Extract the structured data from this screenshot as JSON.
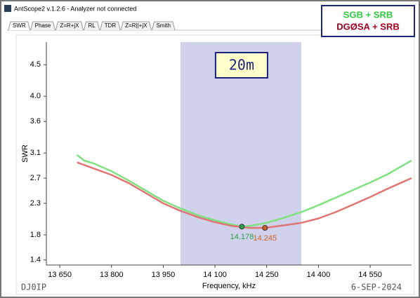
{
  "window": {
    "title": "AntScope2 v.1.2.6 - Analyzer not connected",
    "tabs": [
      "SWR",
      "Phase",
      "Z=R+jX",
      "RL",
      "TDR",
      "Z=R||+jX",
      "Smith"
    ]
  },
  "footer": {
    "left": "DJ0IP",
    "right": "6-SEP-2024"
  },
  "chart_data": {
    "type": "line",
    "x_label": "Frequency, kHz",
    "y_label": "SWR",
    "xlim": [
      13611,
      14670
    ],
    "ylim": [
      1.32,
      4.86
    ],
    "xticks": [
      {
        "value": 13650,
        "label": "13 650"
      },
      {
        "value": 13800,
        "label": "13 800"
      },
      {
        "value": 13950,
        "label": "13 950"
      },
      {
        "value": 14100,
        "label": "14 100"
      },
      {
        "value": 14250,
        "label": "14 250"
      },
      {
        "value": 14400,
        "label": "14 400"
      },
      {
        "value": 14550,
        "label": "14 550"
      }
    ],
    "yticks": [
      1.4,
      1.8,
      2.3,
      2.7,
      3.1,
      3.6,
      {
        "value": 4,
        "label": "4.0"
      },
      4.5
    ],
    "band": {
      "from": 14000,
      "to": 14350,
      "label": "20m",
      "color": "#d0d1ea"
    },
    "legend": "top-right",
    "series": [
      {
        "name": "SGB + SRB",
        "color": "#7fe07f",
        "label_color": "#2ecc40",
        "x": [
          13700,
          13720,
          13750,
          13800,
          13850,
          13900,
          13950,
          14000,
          14050,
          14100,
          14150,
          14178,
          14200,
          14250,
          14300,
          14350,
          14400,
          14450,
          14500,
          14550,
          14600,
          14670
        ],
        "values": [
          3.07,
          2.98,
          2.93,
          2.81,
          2.66,
          2.5,
          2.34,
          2.22,
          2.11,
          2.03,
          1.96,
          1.93,
          1.94,
          1.99,
          2.07,
          2.16,
          2.27,
          2.39,
          2.51,
          2.63,
          2.76,
          2.98
        ]
      },
      {
        "name": "DGØSA + SRB",
        "color": "#e07575",
        "label_color": "#a0001e",
        "x": [
          13700,
          13750,
          13800,
          13850,
          13900,
          13950,
          14000,
          14050,
          14100,
          14150,
          14200,
          14245,
          14300,
          14350,
          14400,
          14450,
          14500,
          14550,
          14600,
          14670
        ],
        "values": [
          2.95,
          2.85,
          2.75,
          2.62,
          2.46,
          2.3,
          2.18,
          2.08,
          2.0,
          1.94,
          1.91,
          1.91,
          1.95,
          1.99,
          2.06,
          2.16,
          2.28,
          2.4,
          2.53,
          2.7
        ]
      }
    ],
    "markers": [
      {
        "x": 14178,
        "y": 1.93,
        "label": "14.178",
        "color": "#2e9e4a"
      },
      {
        "x": 14245,
        "y": 1.91,
        "label": "14.245",
        "color": "#d06020"
      }
    ]
  }
}
